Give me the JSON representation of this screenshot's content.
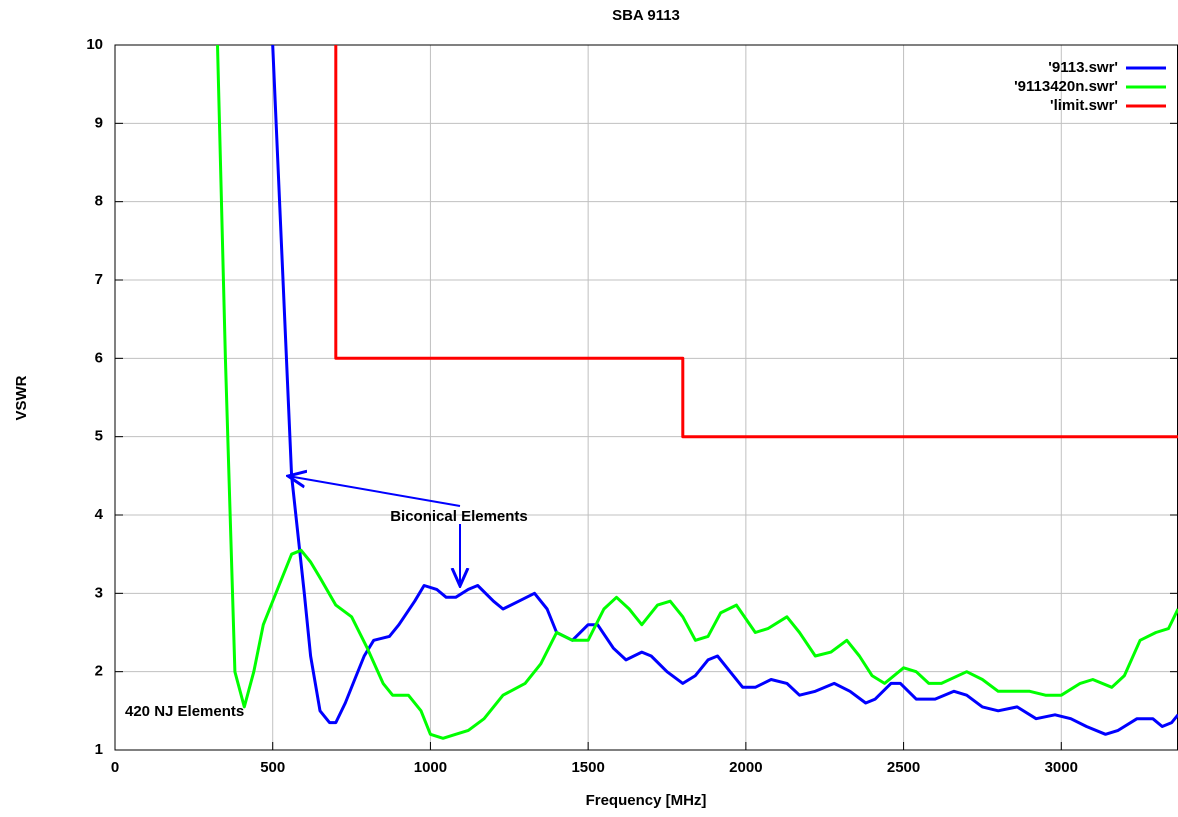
{
  "chart_data": {
    "type": "line",
    "title": "SBA 9113",
    "x_label": "Frequency [MHz]",
    "y_label": "VSWR",
    "xlim": [
      0,
      3370
    ],
    "ylim": [
      1,
      10
    ],
    "xticks": [
      0,
      500,
      1000,
      1500,
      2000,
      2500,
      3000
    ],
    "yticks": [
      1,
      2,
      3,
      4,
      5,
      6,
      7,
      8,
      9,
      10
    ],
    "grid": true,
    "legend": "top-right",
    "annotations": [
      "Biconical Elements",
      "420 NJ Elements"
    ],
    "series": [
      {
        "name": "'9113.swr'",
        "color": "#0000ff",
        "x": [
          500,
          560,
          600,
          620,
          650,
          680,
          700,
          730,
          760,
          790,
          820,
          870,
          900,
          950,
          980,
          1020,
          1050,
          1080,
          1120,
          1150,
          1200,
          1230,
          1280,
          1330,
          1370,
          1400,
          1450,
          1500,
          1530,
          1580,
          1620,
          1670,
          1700,
          1750,
          1800,
          1840,
          1880,
          1910,
          1950,
          1990,
          2030,
          2080,
          2130,
          2170,
          2220,
          2280,
          2330,
          2380,
          2410,
          2460,
          2490,
          2540,
          2600,
          2660,
          2700,
          2750,
          2800,
          2860,
          2920,
          2980,
          3030,
          3080,
          3140,
          3180,
          3240,
          3290,
          3320,
          3350,
          3370
        ],
        "values": [
          10,
          4.5,
          3,
          2.2,
          1.5,
          1.35,
          1.35,
          1.6,
          1.9,
          2.2,
          2.4,
          2.45,
          2.6,
          2.9,
          3.1,
          3.05,
          2.95,
          2.95,
          3.05,
          3.1,
          2.9,
          2.8,
          2.9,
          3.0,
          2.8,
          2.5,
          2.4,
          2.6,
          2.6,
          2.3,
          2.15,
          2.25,
          2.2,
          2.0,
          1.85,
          1.95,
          2.15,
          2.2,
          2.0,
          1.8,
          1.8,
          1.9,
          1.85,
          1.7,
          1.75,
          1.85,
          1.75,
          1.6,
          1.65,
          1.85,
          1.85,
          1.65,
          1.65,
          1.75,
          1.7,
          1.55,
          1.5,
          1.55,
          1.4,
          1.45,
          1.4,
          1.3,
          1.2,
          1.25,
          1.4,
          1.4,
          1.3,
          1.35,
          1.45
        ]
      },
      {
        "name": "'9113420n.swr'",
        "color": "#00ff00",
        "x": [
          325,
          350,
          380,
          410,
          440,
          470,
          520,
          560,
          590,
          620,
          650,
          700,
          750,
          800,
          850,
          880,
          930,
          970,
          1000,
          1040,
          1080,
          1120,
          1170,
          1230,
          1300,
          1350,
          1400,
          1450,
          1500,
          1550,
          1590,
          1630,
          1670,
          1720,
          1760,
          1800,
          1840,
          1880,
          1920,
          1970,
          2030,
          2070,
          2130,
          2170,
          2220,
          2270,
          2320,
          2360,
          2400,
          2440,
          2500,
          2540,
          2580,
          2620,
          2700,
          2750,
          2800,
          2850,
          2900,
          2950,
          3000,
          3060,
          3100,
          3160,
          3200,
          3250,
          3300,
          3340,
          3370
        ],
        "values": [
          10,
          6,
          2,
          1.55,
          2,
          2.6,
          3.1,
          3.5,
          3.55,
          3.4,
          3.2,
          2.85,
          2.7,
          2.3,
          1.85,
          1.7,
          1.7,
          1.5,
          1.2,
          1.15,
          1.2,
          1.25,
          1.4,
          1.7,
          1.85,
          2.1,
          2.5,
          2.4,
          2.4,
          2.8,
          2.95,
          2.8,
          2.6,
          2.85,
          2.9,
          2.7,
          2.4,
          2.45,
          2.75,
          2.85,
          2.5,
          2.55,
          2.7,
          2.5,
          2.2,
          2.25,
          2.4,
          2.2,
          1.95,
          1.85,
          2.05,
          2.0,
          1.85,
          1.85,
          2.0,
          1.9,
          1.75,
          1.75,
          1.75,
          1.7,
          1.7,
          1.85,
          1.9,
          1.8,
          1.95,
          2.4,
          2.5,
          2.55,
          2.8
        ]
      },
      {
        "name": "'limit.swr'",
        "color": "#ff0000",
        "x": [
          700,
          700,
          1800,
          1800,
          3370
        ],
        "values": [
          10,
          6,
          6,
          5,
          5
        ]
      }
    ]
  }
}
